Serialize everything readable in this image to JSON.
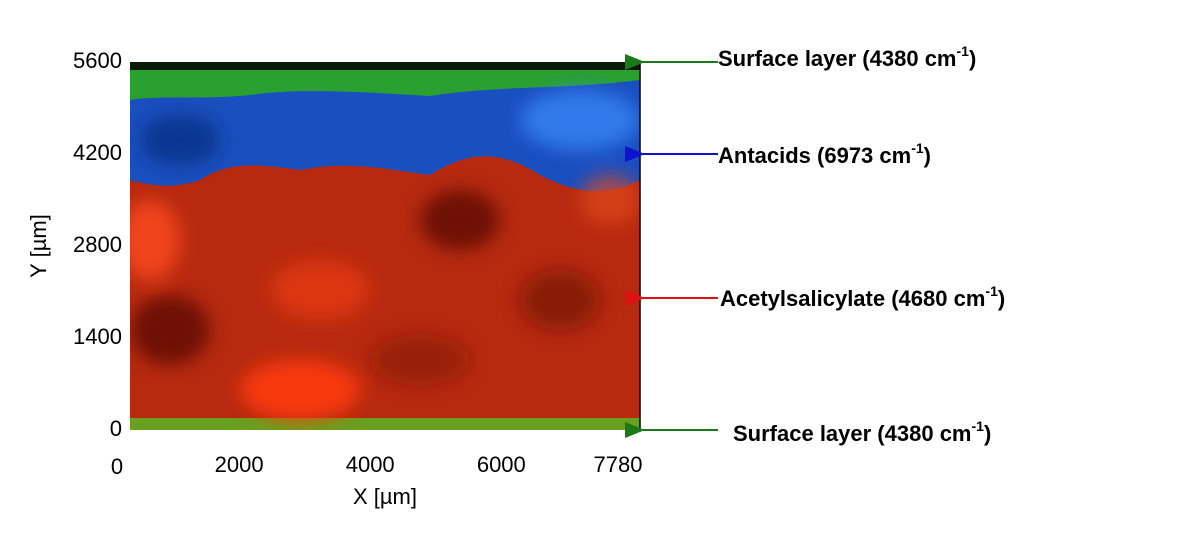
{
  "chart_data": {
    "type": "image-map",
    "x_label": "X [µm]",
    "y_label": "Y [µm]",
    "xlim": [
      0,
      7780
    ],
    "xticks": [
      0,
      2000,
      4000,
      6000,
      7780
    ],
    "ylim": [
      0,
      5600
    ],
    "yticks": [
      0,
      1400,
      2800,
      4200,
      5600
    ],
    "annotations": [
      {
        "text": "Surface layer (4380 cm",
        "sup": "-1",
        "close": ")",
        "color": "#1a7a1a"
      },
      {
        "text": "Antacids  (6973 cm",
        "sup": "-1",
        "close": ")",
        "color": "#1010d0"
      },
      {
        "text": "Acetylsalicylate (4680 cm",
        "sup": "-1",
        "close": ")",
        "color": "#e01010"
      },
      {
        "text": "Surface layer (4380 cm",
        "sup": "-1",
        "close": ")",
        "color": "#1a7a1a"
      }
    ]
  }
}
